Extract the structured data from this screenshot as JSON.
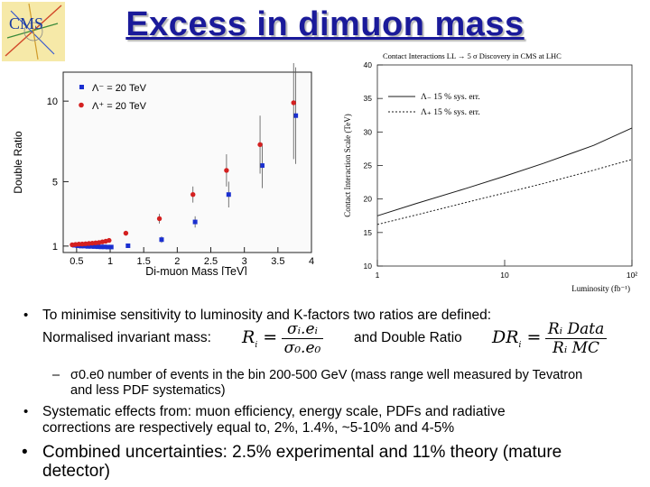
{
  "slide": {
    "title": "Excess in dimuon mass",
    "logo_text": "CMS"
  },
  "chart_data": [
    {
      "type": "scatter",
      "ylabel": "Double Ratio",
      "xlabel": "Di-muon Mass  [TeV]",
      "xlim": [
        0.3,
        4.0
      ],
      "ylim": [
        0.6,
        11.8
      ],
      "xticks": [
        "0.5",
        "1",
        "1.5",
        "2",
        "2.5",
        "3",
        "3.5",
        "4"
      ],
      "yticks": [
        "1",
        "5",
        "10"
      ],
      "grid": false,
      "legend_position": "top-left",
      "series": [
        {
          "name": "Λ⁻ = 20 TeV",
          "color": "#1a2fd0",
          "marker": "square",
          "x": [
            0.45,
            0.5,
            0.55,
            0.6,
            0.65,
            0.7,
            0.75,
            0.8,
            0.85,
            0.9,
            0.95,
            1.0,
            1.25,
            1.75,
            2.25,
            2.75,
            3.25,
            3.75
          ],
          "y": [
            1.05,
            1.02,
            1.0,
            1.0,
            0.98,
            0.98,
            0.97,
            0.96,
            0.95,
            0.95,
            0.94,
            0.94,
            1.02,
            1.4,
            2.5,
            4.2,
            6.0,
            9.1
          ],
          "err": [
            0.08,
            0.08,
            0.08,
            0.08,
            0.08,
            0.08,
            0.08,
            0.09,
            0.09,
            0.09,
            0.1,
            0.1,
            0.12,
            0.2,
            0.35,
            0.8,
            1.4,
            3.0
          ]
        },
        {
          "name": "Λ⁺ = 20 TeV",
          "color": "#d42020",
          "marker": "circle",
          "x": [
            0.45,
            0.5,
            0.55,
            0.6,
            0.65,
            0.7,
            0.75,
            0.8,
            0.85,
            0.9,
            0.95,
            1.0,
            1.25,
            1.75,
            2.25,
            2.75,
            3.25,
            3.75
          ],
          "y": [
            1.08,
            1.1,
            1.12,
            1.13,
            1.14,
            1.16,
            1.18,
            1.2,
            1.22,
            1.26,
            1.3,
            1.35,
            1.8,
            2.7,
            4.2,
            5.7,
            7.3,
            9.9
          ],
          "err": [
            0.08,
            0.08,
            0.08,
            0.08,
            0.08,
            0.09,
            0.09,
            0.1,
            0.1,
            0.1,
            0.11,
            0.12,
            0.15,
            0.3,
            0.5,
            1.0,
            1.8,
            3.5
          ]
        }
      ]
    },
    {
      "type": "line",
      "title": "Contact Interactions LL → 5 σ Discovery in CMS at LHC",
      "ylabel": "Contact Interaction Scale (TeV)",
      "xlabel": "Luminosity (fb⁻¹)",
      "xscale": "log",
      "xlim": [
        1,
        100
      ],
      "ylim": [
        10,
        40
      ],
      "xticks": [
        "1",
        "10",
        "10²"
      ],
      "xtick_values": [
        1,
        10,
        100
      ],
      "yticks": [
        "10",
        "15",
        "20",
        "25",
        "30",
        "35",
        "40"
      ],
      "grid": false,
      "legend_position": "top-left",
      "series": [
        {
          "name": "Λ₋ 15 % sys. err.",
          "style": "solid",
          "color": "#1a1a1a",
          "x": [
            1,
            2,
            5,
            10,
            20,
            50,
            100
          ],
          "y": [
            17.5,
            19.3,
            21.6,
            23.4,
            25.3,
            28.0,
            30.6
          ]
        },
        {
          "name": "Λ₊ 15 % sys. err.",
          "style": "dotted",
          "color": "#1a1a1a",
          "x": [
            1,
            2,
            5,
            10,
            20,
            50,
            100
          ],
          "y": [
            16.2,
            17.6,
            19.5,
            20.9,
            22.3,
            24.3,
            25.9
          ]
        }
      ]
    }
  ],
  "bullets": {
    "b1_text": "To minimise sensitivity to luminosity and K-factors two ratios are defined:",
    "b1_line2_a": "Normalised invariant mass:",
    "b1_line2_b": "and Double Ratio",
    "formula_R_lhs": "R",
    "formula_R_num": "σᵢ.eᵢ",
    "formula_R_den": "σ₀.e₀",
    "formula_DR_lhs": "DR",
    "formula_DR_num": "Rᵢ Data",
    "formula_DR_den": "Rᵢ MC",
    "sub1_dash": "–",
    "sub1_line1": "σ0.e0 number of events in the bin 200-500 GeV (mass range well measured by Tevatron",
    "sub1_line2": "and less PDF systematics)",
    "b2_line1": "Systematic effects from: muon efficiency, energy scale, PDFs and radiative",
    "b2_line2": "corrections are respectively equal to, 2%, 1.4%, ~5-10% and 4-5%",
    "b3_line1": "Combined uncertainties: 2.5% experimental and 11% theory (mature",
    "b3_line2": "detector)",
    "bullet_char": "•"
  }
}
